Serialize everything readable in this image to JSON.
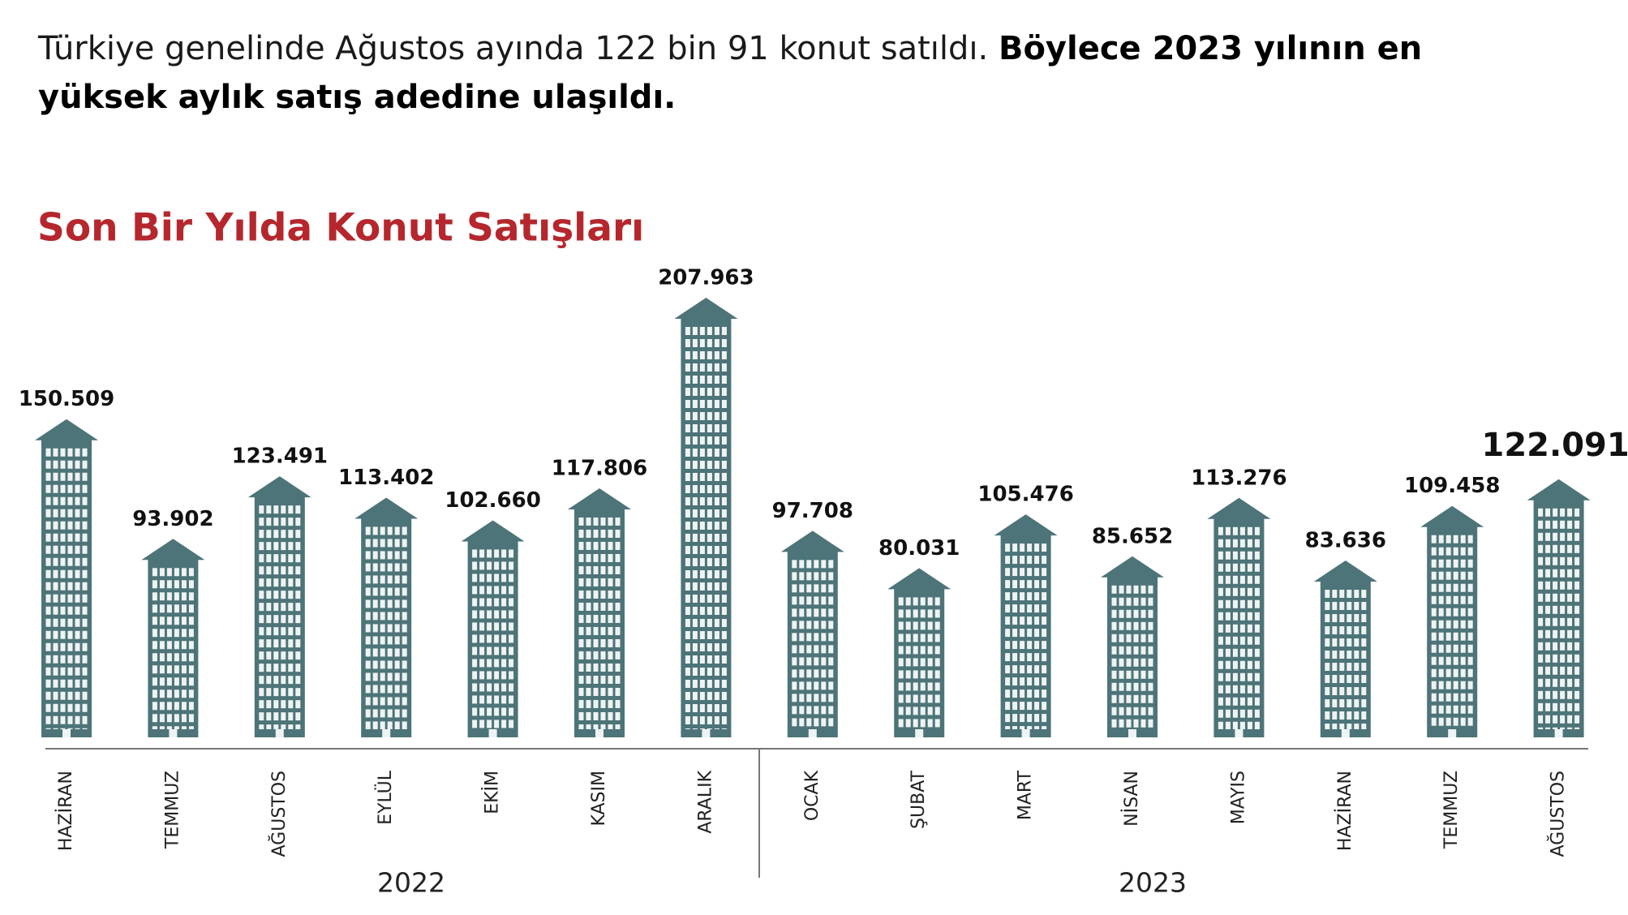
{
  "headline": {
    "normal": "Türkiye genelinde Ağustos ayında 122 bin 91 konut satıldı.",
    "bold": "Böylece 2023 yılının en yüksek aylık satış adedine ulaşıldı."
  },
  "chart_data": {
    "type": "bar",
    "title": "Son Bir Yılda Konut Satışları",
    "color": "#4d7478",
    "categories": [
      "HAZİRAN",
      "TEMMUZ",
      "AĞUSTOS",
      "EYLÜL",
      "EKİM",
      "KASIM",
      "ARALIK",
      "OCAK",
      "ŞUBAT",
      "MART",
      "NİSAN",
      "MAYIS",
      "HAZİRAN",
      "TEMMUZ",
      "AĞUSTOS"
    ],
    "values": [
      150509,
      93902,
      123491,
      113402,
      102660,
      117806,
      207963,
      97708,
      80031,
      105476,
      85652,
      113276,
      83636,
      109458,
      122091
    ],
    "value_labels": [
      "150.509",
      "93.902",
      "123.491",
      "113.402",
      "102.660",
      "117.806",
      "207.963",
      "97.708",
      "80.031",
      "105.476",
      "85.652",
      "113.276",
      "83.636",
      "109.458",
      "122.091"
    ],
    "groups": [
      "2022",
      "2023"
    ]
  }
}
